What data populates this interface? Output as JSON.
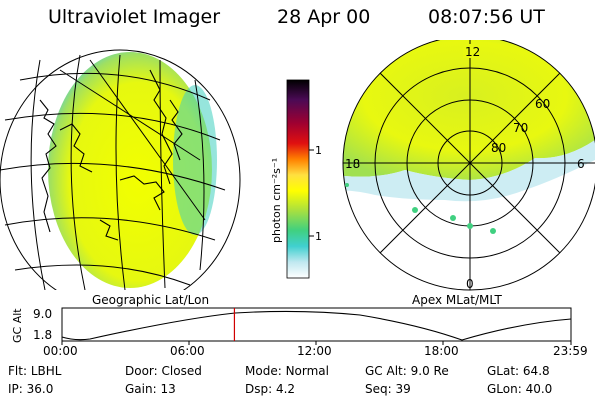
{
  "header": {
    "title": "Ultraviolet Imager",
    "date": "28 Apr 00",
    "time": "08:07:56 UT"
  },
  "colorbar": {
    "label": "photon cm⁻²s⁻¹",
    "ticks": [
      "100",
      "10"
    ],
    "colors": [
      "#000000",
      "#4b0a55",
      "#c80014",
      "#ff8000",
      "#ffe040",
      "#ffff00",
      "#a8e040",
      "#40d080",
      "#40d0d0",
      "#c0e8f0",
      "#ffffff"
    ]
  },
  "left_map": {
    "label": "Geographic Lat/Lon"
  },
  "polar_plot": {
    "label": "Apex MLat/MLT",
    "mlt_labels": {
      "top": "12",
      "left": "18",
      "right": "6",
      "bottom": "0"
    },
    "lat_labels": [
      "60",
      "70",
      "80"
    ]
  },
  "altitude_plot": {
    "ylabel": "GC Alt",
    "yticks": [
      "9.0",
      "1.8"
    ],
    "xticks": [
      "00:00",
      "06:00",
      "12:00",
      "18:00",
      "23:59"
    ],
    "marker_time_hours": 8.13
  },
  "info": {
    "row1": {
      "flt_label": "Flt:",
      "flt_value": "LBHL",
      "door_label": "Door:",
      "door_value": "Closed",
      "mode_label": "Mode:",
      "mode_value": "Normal",
      "gcalt_label": "GC Alt:",
      "gcalt_value": "9.0 Re",
      "glat_label": "GLat:",
      "glat_value": "64.8"
    },
    "row2": {
      "ip_label": "IP:",
      "ip_value": "36.0",
      "gain_label": "Gain:",
      "gain_value": "13",
      "dsp_label": "Dsp:",
      "dsp_value": "4.2",
      "seq_label": "Seq:",
      "seq_value": "39",
      "glon_label": "GLon:",
      "glon_value": "40.0"
    }
  }
}
